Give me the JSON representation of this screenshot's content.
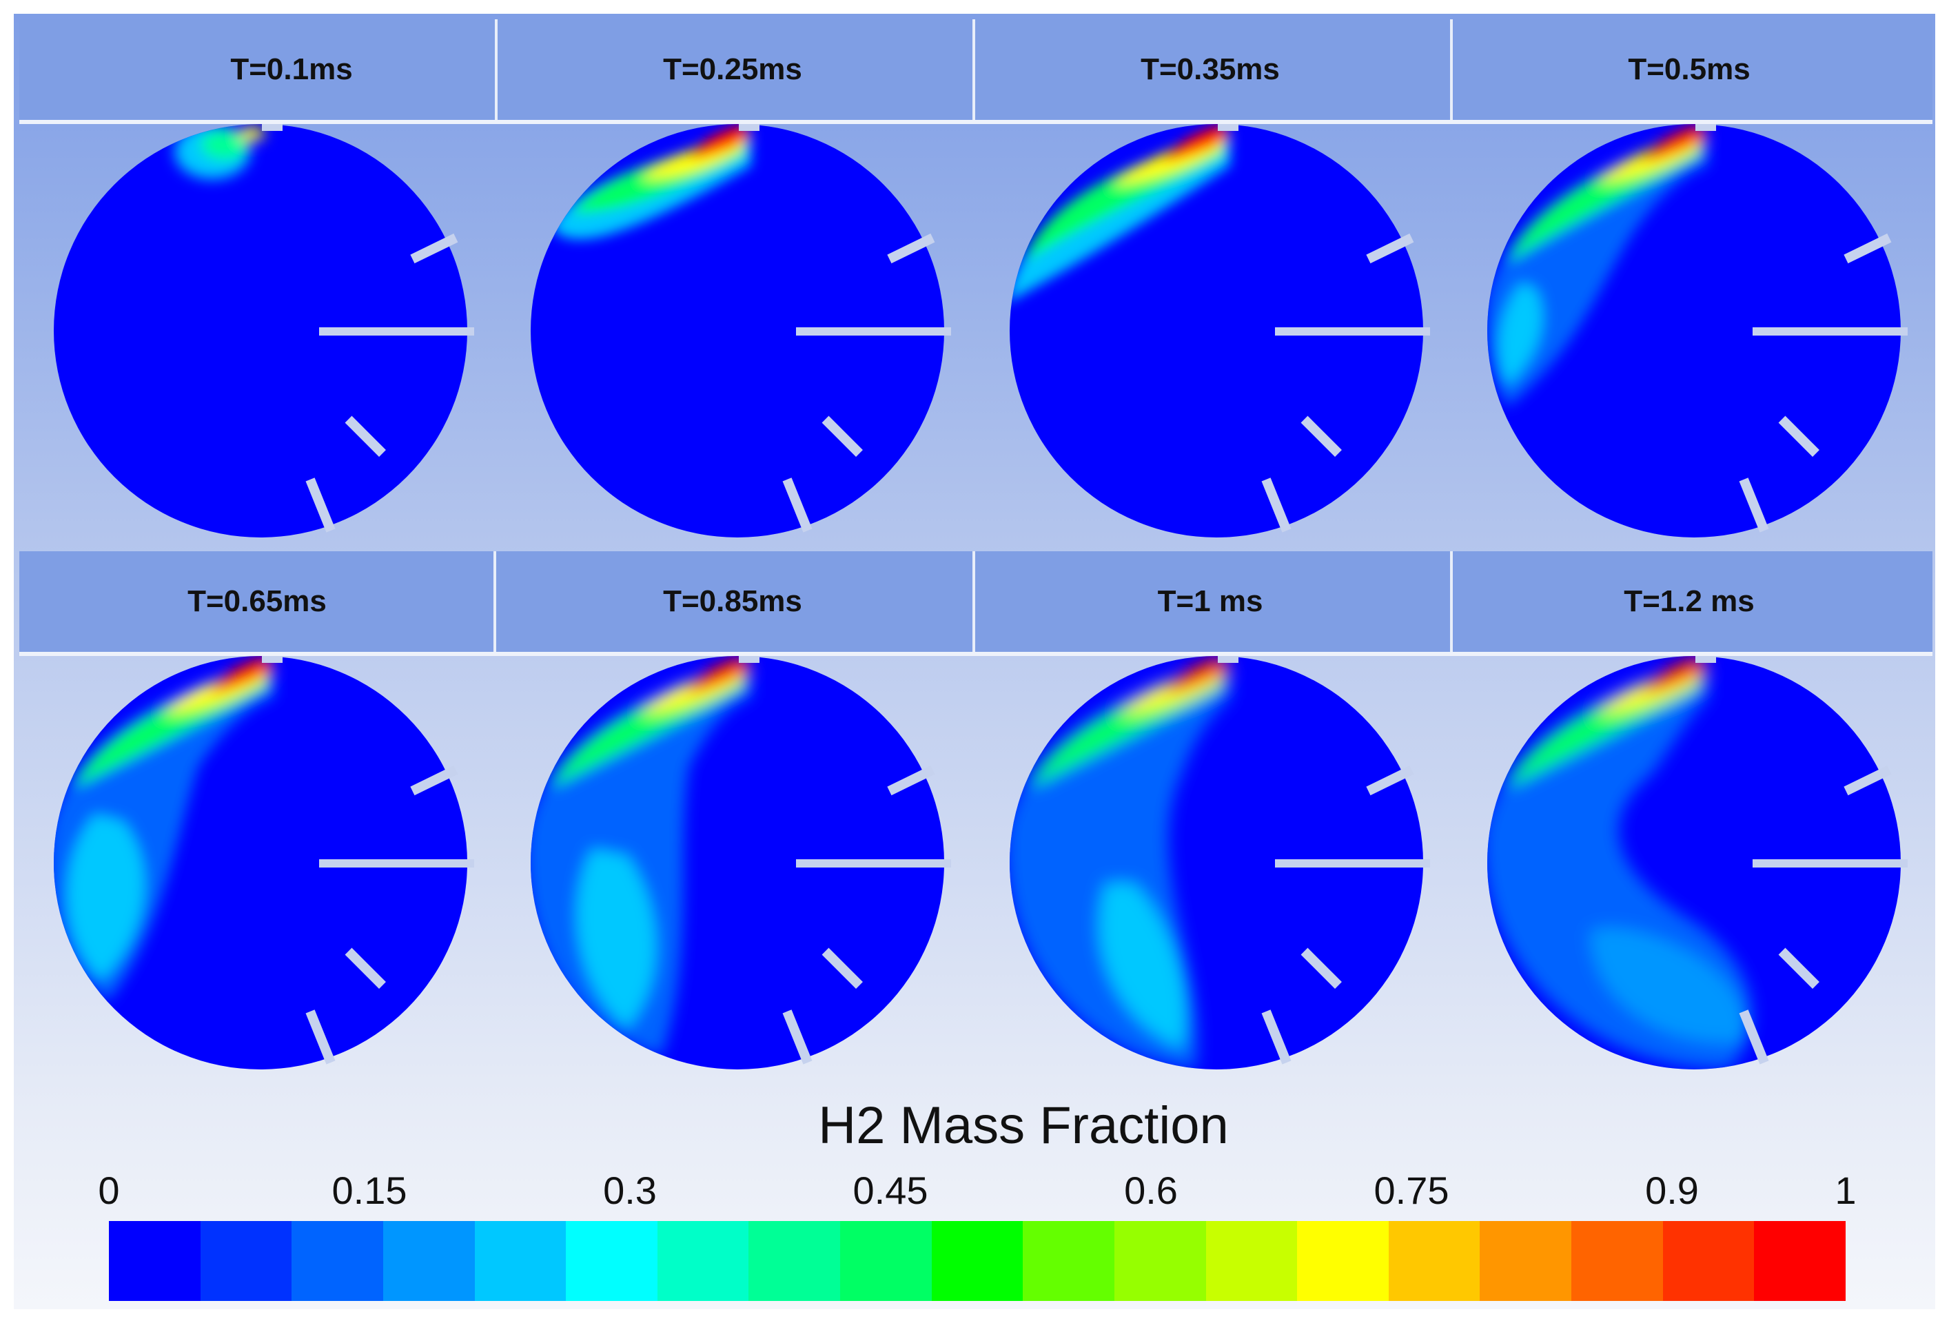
{
  "panels": [
    {
      "time_label": "T=0.1ms"
    },
    {
      "time_label": "T=0.25ms"
    },
    {
      "time_label": "T=0.35ms"
    },
    {
      "time_label": "T=0.5ms"
    },
    {
      "time_label": "T=0.65ms"
    },
    {
      "time_label": "T=0.85ms"
    },
    {
      "time_label": "T=1 ms"
    },
    {
      "time_label": "T=1.2 ms"
    }
  ],
  "colorbar": {
    "title": "H2 Mass Fraction",
    "ticks": [
      "0",
      "0.15",
      "0.3",
      "0.45",
      "0.6",
      "0.75",
      "0.9",
      "1"
    ],
    "tick_values": [
      0,
      0.15,
      0.3,
      0.45,
      0.6,
      0.75,
      0.9,
      1
    ],
    "colors": [
      "#0000ff",
      "#0032ff",
      "#0064ff",
      "#0096ff",
      "#00c8ff",
      "#00ffff",
      "#00ffc8",
      "#00ff96",
      "#00ff64",
      "#00ff00",
      "#64ff00",
      "#96ff00",
      "#c8ff00",
      "#ffff00",
      "#ffc800",
      "#ff9600",
      "#ff6400",
      "#ff3200",
      "#ff0000"
    ]
  },
  "palette": {
    "header": "#7f9ee4",
    "domain": "#0000ff"
  }
}
